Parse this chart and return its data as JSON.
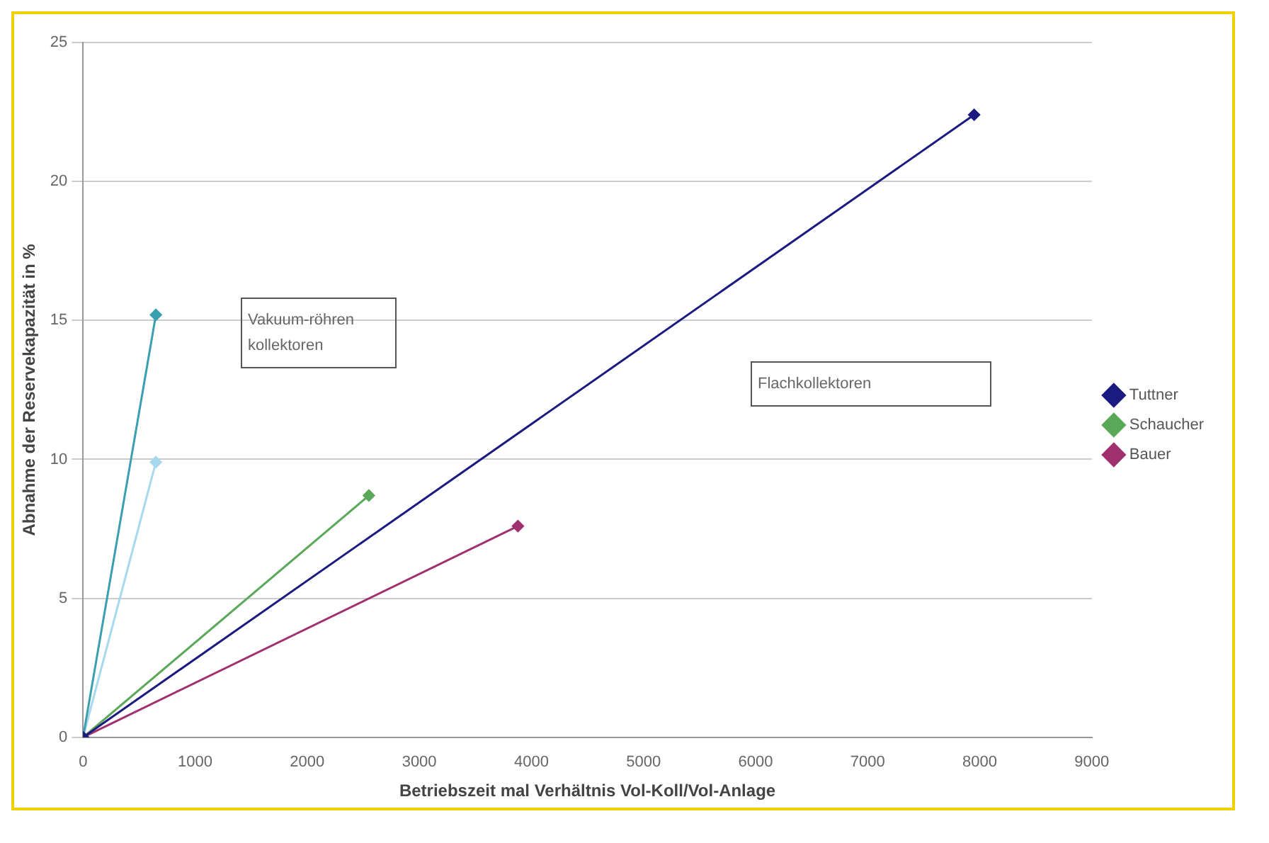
{
  "chart_data": {
    "type": "line",
    "xlabel": "Betriebszeit mal Verhältnis Vol-Koll/Vol-Anlage",
    "ylabel": "Abnahme der Reservekapazität in %",
    "xlim": [
      0,
      9000
    ],
    "xticks": [
      0,
      1000,
      2000,
      3000,
      4000,
      5000,
      6000,
      7000,
      8000,
      9000
    ],
    "ylim": [
      0,
      25
    ],
    "yticks": [
      0,
      5,
      10,
      15,
      20,
      25
    ],
    "grid": "y",
    "legend": "right",
    "marker": "diamond",
    "line_style": "solid",
    "annotations": [
      "Vakuum-röhren kollektoren",
      "Flachkollektoren"
    ],
    "series": [
      {
        "name": "Tuttner",
        "color": "#1a1a80",
        "x": [
          0,
          7950
        ],
        "values": [
          0,
          22.4
        ]
      },
      {
        "name": "Schaucher",
        "color": "#5aa85a",
        "x": [
          0,
          2550
        ],
        "values": [
          0,
          8.7
        ]
      },
      {
        "name": "Bauer",
        "color": "#a03070",
        "x": [
          0,
          3880
        ],
        "values": [
          0,
          7.6
        ]
      },
      {
        "color": "#3a9fb0",
        "x": [
          0,
          650
        ],
        "values": [
          0,
          15.2
        ]
      },
      {
        "color": "#a8d8ee",
        "x": [
          0,
          650
        ],
        "values": [
          0,
          9.9
        ]
      }
    ]
  }
}
